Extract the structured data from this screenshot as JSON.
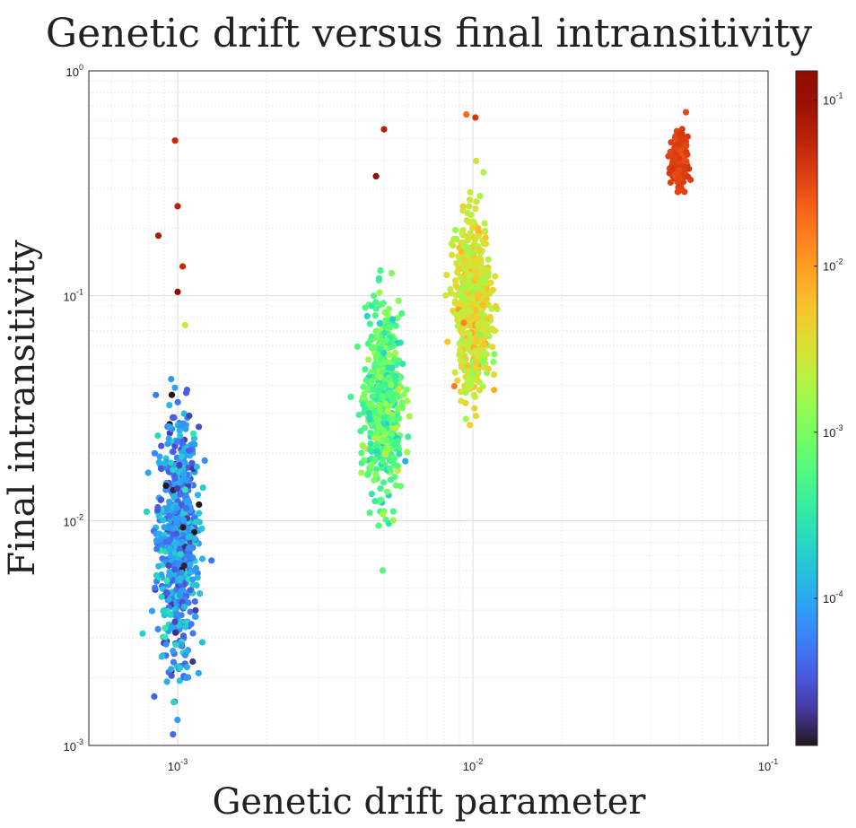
{
  "chart_data": {
    "type": "scatter",
    "title": "Genetic drift versus final intransitivity",
    "xlabel": "Genetic drift parameter",
    "ylabel": "Final intransitivity",
    "xscale": "log",
    "yscale": "log",
    "xlim": [
      0.0005,
      0.1
    ],
    "ylim": [
      0.001,
      1
    ],
    "x_ticks": [
      {
        "value": 0.001,
        "base": "10",
        "exp": "-3"
      },
      {
        "value": 0.01,
        "base": "10",
        "exp": "-2"
      },
      {
        "value": 0.1,
        "base": "10",
        "exp": "-1"
      }
    ],
    "y_ticks": [
      {
        "value": 0.001,
        "base": "10",
        "exp": "-3"
      },
      {
        "value": 0.01,
        "base": "10",
        "exp": "-2"
      },
      {
        "value": 0.1,
        "base": "10",
        "exp": "-1"
      },
      {
        "value": 1,
        "base": "10",
        "exp": "0"
      }
    ],
    "grid": true,
    "colormap": "turbo",
    "colorbar": {
      "scale": "log",
      "range": [
        1.3e-05,
        0.15
      ],
      "ticks": [
        {
          "value": 0.0001,
          "base": "10",
          "exp": "-4"
        },
        {
          "value": 0.001,
          "base": "10",
          "exp": "-3"
        },
        {
          "value": 0.01,
          "base": "10",
          "exp": "-2"
        },
        {
          "value": 0.1,
          "base": "10",
          "exp": "-1"
        }
      ]
    },
    "clusters": [
      {
        "x_center": 0.001,
        "y_center": 0.0085,
        "y_spread_decades": 0.28,
        "color_center": 7e-05,
        "color_spread_decades": 0.3
      },
      {
        "x_center": 0.005,
        "y_center": 0.033,
        "y_spread_decades": 0.2,
        "color_center": 0.0006,
        "color_spread_decades": 0.25
      },
      {
        "x_center": 0.01,
        "y_center": 0.09,
        "y_spread_decades": 0.18,
        "color_center": 0.003,
        "color_spread_decades": 0.2
      },
      {
        "x_center": 0.05,
        "y_center": 0.4,
        "y_spread_decades": 0.05,
        "color_center": 0.035,
        "color_spread_decades": 0.05
      }
    ],
    "outliers": [
      {
        "x": 0.00098,
        "y": 0.49,
        "c": 0.05
      },
      {
        "x": 0.001,
        "y": 0.25,
        "c": 0.06
      },
      {
        "x": 0.00086,
        "y": 0.185,
        "c": 0.07
      },
      {
        "x": 0.00104,
        "y": 0.135,
        "c": 0.05
      },
      {
        "x": 0.001,
        "y": 0.104,
        "c": 0.14
      },
      {
        "x": 0.00106,
        "y": 0.074,
        "c": 0.003
      },
      {
        "x": 0.0047,
        "y": 0.34,
        "c": 0.14
      },
      {
        "x": 0.005,
        "y": 0.55,
        "c": 0.06
      },
      {
        "x": 0.0102,
        "y": 0.62,
        "c": 0.04
      },
      {
        "x": 0.0095,
        "y": 0.64,
        "c": 0.02
      },
      {
        "x": 0.00495,
        "y": 0.006,
        "c": 0.0006
      }
    ]
  }
}
